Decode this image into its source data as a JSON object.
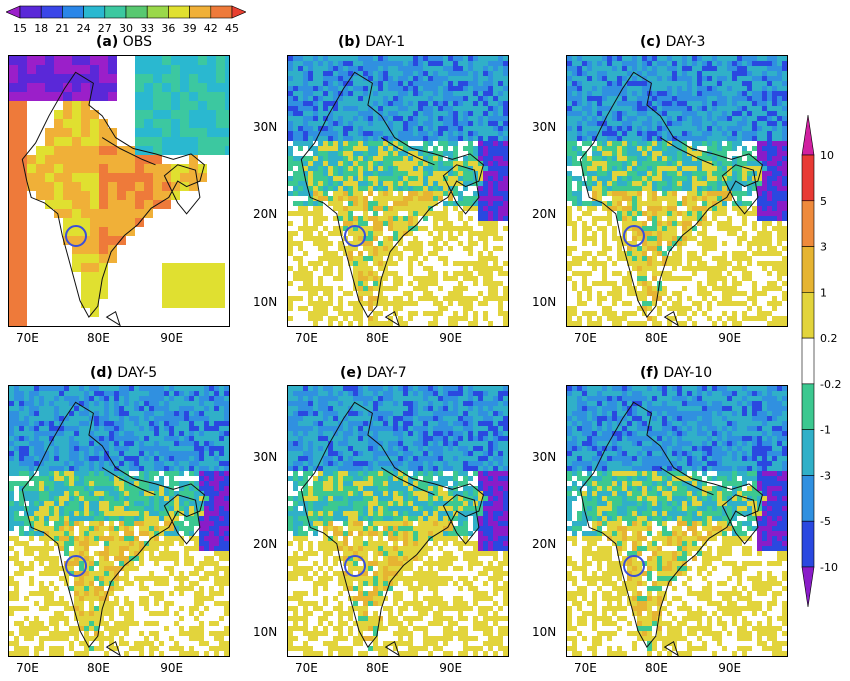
{
  "obs_colorbar": {
    "labels": [
      "15",
      "18",
      "21",
      "24",
      "27",
      "30",
      "33",
      "36",
      "39",
      "42",
      "45"
    ],
    "colors": [
      "#9b1fc9",
      "#5a28d8",
      "#3a46e8",
      "#2a86e8",
      "#2ab8d0",
      "#3cc8a0",
      "#58c870",
      "#9ad84a",
      "#e0e030",
      "#f0b038",
      "#ee7a3a",
      "#e84030"
    ]
  },
  "anomaly_colorbar": {
    "labels": [
      "10",
      "5",
      "3",
      "1",
      "0.2",
      "-0.2",
      "-1",
      "-3",
      "-5",
      "-10"
    ],
    "colors": [
      "#d020a0",
      "#e83a34",
      "#ee8a3c",
      "#e6b432",
      "#e2d43c",
      "#ffffff",
      "#3cc890",
      "#30b0c8",
      "#3090e0",
      "#2a48e0",
      "#8a1cc8"
    ]
  },
  "panels": [
    {
      "letter": "(a)",
      "label": "OBS",
      "style": "obs"
    },
    {
      "letter": "(b)",
      "label": "DAY-1",
      "style": "anomaly"
    },
    {
      "letter": "(c)",
      "label": "DAY-3",
      "style": "anomaly"
    },
    {
      "letter": "(d)",
      "label": "DAY-5",
      "style": "anomaly"
    },
    {
      "letter": "(e)",
      "label": "DAY-7",
      "style": "anomaly"
    },
    {
      "letter": "(f)",
      "label": "DAY-10",
      "style": "anomaly"
    }
  ],
  "axes": {
    "lon_ticks": [
      "70E",
      "80E",
      "90E"
    ],
    "lat_ticks": [
      "30N",
      "20N",
      "10N"
    ]
  }
}
